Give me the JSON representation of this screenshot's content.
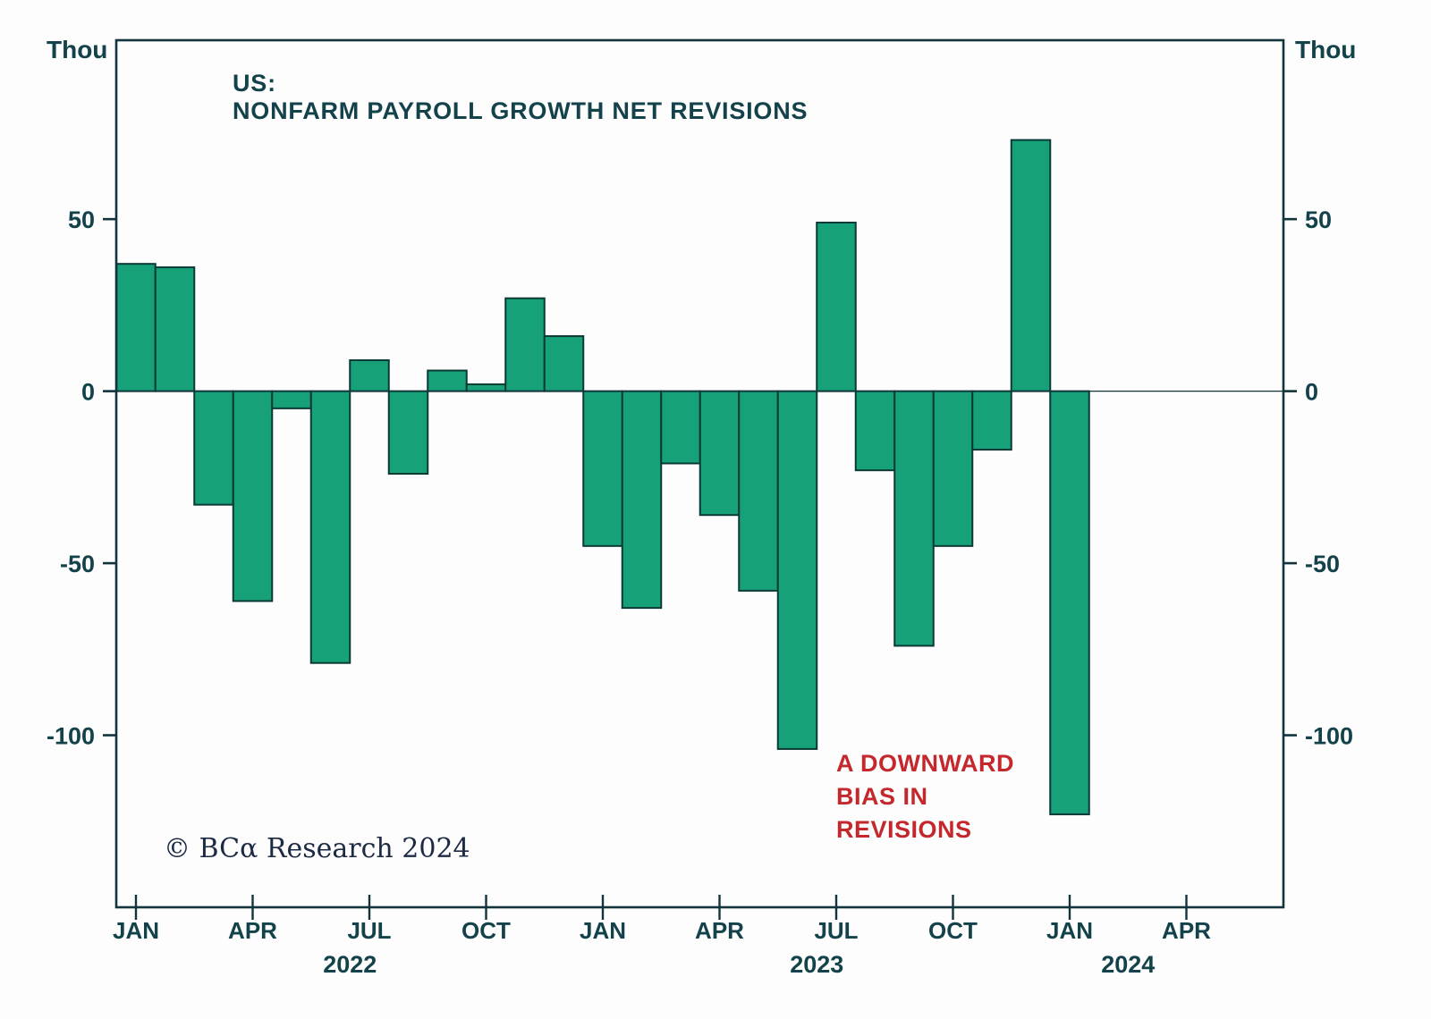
{
  "axes_units": {
    "left": "Thou",
    "right": "Thou"
  },
  "title": {
    "line1": "US:",
    "line2": "NONFARM PAYROLL GROWTH NET REVISIONS"
  },
  "annotation": {
    "line1": "A DOWNWARD",
    "line2": "BIAS IN",
    "line3": "REVISIONS"
  },
  "copyright": "© BCα Research 2024",
  "chart_data": {
    "type": "bar",
    "title": "US: NONFARM PAYROLL GROWTH NET REVISIONS",
    "ylabel": "Thou",
    "ylim": [
      -150,
      102
    ],
    "yticks": [
      50,
      0,
      -50,
      -100
    ],
    "months": [
      "Jan 2022",
      "Feb 2022",
      "Mar 2022",
      "Apr 2022",
      "May 2022",
      "Jun 2022",
      "Jul 2022",
      "Aug 2022",
      "Sep 2022",
      "Oct 2022",
      "Nov 2022",
      "Dec 2022",
      "Jan 2023",
      "Feb 2023",
      "Mar 2023",
      "Apr 2023",
      "May 2023",
      "Jun 2023",
      "Jul 2023",
      "Aug 2023",
      "Sep 2023",
      "Oct 2023",
      "Nov 2023",
      "Dec 2023",
      "Jan 2024"
    ],
    "values": [
      37,
      36,
      -33,
      -61,
      -5,
      -79,
      9,
      -24,
      6,
      2,
      27,
      16,
      -45,
      -63,
      -21,
      -36,
      -58,
      -104,
      49,
      -23,
      -74,
      -45,
      -17,
      73,
      -123
    ],
    "series_name": "Nonfarm payroll growth net revisions (thousands)",
    "x_ticks": [
      {
        "m": 0,
        "label": "JAN"
      },
      {
        "m": 3,
        "label": "APR"
      },
      {
        "m": 6,
        "label": "JUL"
      },
      {
        "m": 9,
        "label": "OCT"
      },
      {
        "m": 12,
        "label": "JAN"
      },
      {
        "m": 15,
        "label": "APR"
      },
      {
        "m": 18,
        "label": "JUL"
      },
      {
        "m": 21,
        "label": "OCT"
      },
      {
        "m": 24,
        "label": "JAN"
      },
      {
        "m": 27,
        "label": "APR"
      }
    ],
    "year_labels": [
      {
        "m": 5.5,
        "label": "2022"
      },
      {
        "m": 17.5,
        "label": "2023"
      },
      {
        "m": 25.5,
        "label": "2024"
      }
    ],
    "legend": "none",
    "grid": "off",
    "colors": {
      "bar_fill": "#16a179",
      "bar_stroke": "#0b3a36",
      "axis": "#13343c",
      "text": "#13424b",
      "annotation": "#c5282c"
    }
  }
}
